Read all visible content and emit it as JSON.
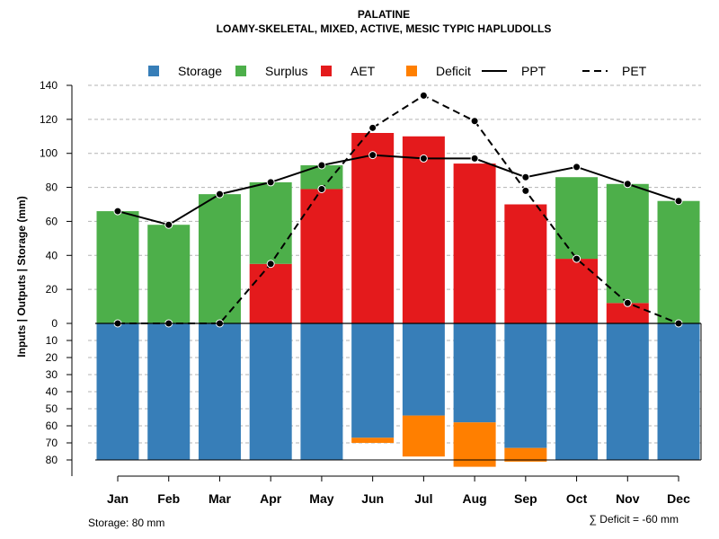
{
  "chart_data": {
    "type": "bar",
    "title": "PALATINE",
    "subtitle": "LOAMY-SKELETAL, MIXED, ACTIVE, MESIC TYPIC HAPLUDOLLS",
    "ylabel": "Inputs | Outputs | Storage    (mm)",
    "categories": [
      "Jan",
      "Feb",
      "Mar",
      "Apr",
      "May",
      "Jun",
      "Jul",
      "Aug",
      "Sep",
      "Oct",
      "Nov",
      "Dec"
    ],
    "ylim_upper": [
      0,
      140
    ],
    "yticks_upper": [
      0,
      20,
      40,
      60,
      80,
      100,
      120,
      140
    ],
    "ylim_lower": [
      0,
      80
    ],
    "yticks_lower": [
      10,
      20,
      30,
      40,
      50,
      60,
      70,
      80
    ],
    "upper_tick_labels": [
      "0",
      "20",
      "40",
      "60",
      "80",
      "100",
      "120",
      "140"
    ],
    "lower_tick_labels": [
      "10",
      "20",
      "30",
      "40",
      "50",
      "60",
      "70",
      "80"
    ],
    "series": [
      {
        "name": "Storage",
        "color": "#377eb8",
        "values": [
          80,
          80,
          80,
          80,
          80,
          67,
          54,
          58,
          73,
          80,
          80,
          80
        ]
      },
      {
        "name": "Surplus",
        "color": "#4daf4a",
        "values": [
          66,
          58,
          76,
          48,
          14,
          0,
          0,
          0,
          0,
          48,
          70,
          72
        ]
      },
      {
        "name": "AET",
        "color": "#e41a1c",
        "values": [
          0,
          0,
          0,
          35,
          79,
          112,
          110,
          94,
          70,
          38,
          12,
          0
        ]
      },
      {
        "name": "Deficit",
        "color": "#ff7f00",
        "values": [
          0,
          0,
          0,
          0,
          0,
          3,
          24,
          26,
          8,
          0,
          0,
          0
        ]
      },
      {
        "name": "PPT",
        "color": "#000000",
        "line": "solid",
        "values": [
          66,
          58,
          76,
          83,
          93,
          99,
          97,
          97,
          86,
          92,
          82,
          72
        ]
      },
      {
        "name": "PET",
        "color": "#000000",
        "line": "dashed",
        "values": [
          0,
          0,
          0,
          35,
          79,
          115,
          134,
          119,
          78,
          38,
          12,
          0
        ]
      }
    ],
    "legend": [
      "Storage",
      "Surplus",
      "AET",
      "Deficit",
      "PPT",
      "PET"
    ],
    "legend_position": "top",
    "grid": true,
    "storage_note": "Storage: 80 mm",
    "deficit_note": "∑ Deficit = -60 mm"
  }
}
